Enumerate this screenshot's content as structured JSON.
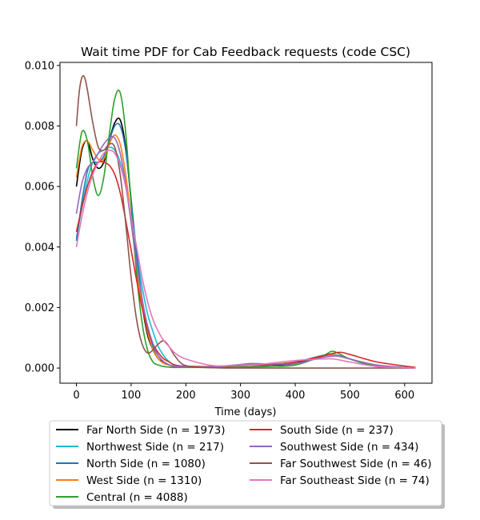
{
  "chart_data": {
    "type": "line",
    "title": "Wait time PDF for Cab Feedback  requests (code CSC)",
    "xlabel": "Time (days)",
    "ylabel": "",
    "xlim": [
      -30,
      650
    ],
    "ylim": [
      -0.0005,
      0.0101
    ],
    "xticks": [
      0,
      100,
      200,
      300,
      400,
      500,
      600
    ],
    "xtick_labels": [
      "0",
      "100",
      "200",
      "300",
      "400",
      "500",
      "600"
    ],
    "yticks": [
      0.0,
      0.002,
      0.004,
      0.006,
      0.008,
      0.01
    ],
    "ytick_labels": [
      "0.000",
      "0.002",
      "0.004",
      "0.006",
      "0.008",
      "0.010"
    ],
    "grid": false,
    "legend_placement": "below plot, two columns",
    "series": [
      {
        "name": "Far North Side (n = 1973)",
        "color": "#000000",
        "x": [
          0,
          10,
          20,
          30,
          40,
          50,
          60,
          70,
          80,
          90,
          100,
          110,
          120,
          130,
          140,
          150,
          160,
          170,
          180,
          200,
          250,
          300,
          350,
          400,
          450,
          470,
          500,
          550,
          620
        ],
        "y": [
          0.006,
          0.0072,
          0.0075,
          0.0069,
          0.0066,
          0.0068,
          0.0075,
          0.0081,
          0.0082,
          0.0073,
          0.0055,
          0.0036,
          0.0021,
          0.0011,
          0.0006,
          0.0003,
          0.0002,
          0.0001,
          5e-05,
          3e-05,
          3e-05,
          0.0001,
          0.0001,
          0.00015,
          0.0004,
          0.00045,
          0.0003,
          5e-05,
          0.0
        ]
      },
      {
        "name": "Northwest Side (n = 217)",
        "color": "#17becf",
        "x": [
          0,
          10,
          20,
          30,
          40,
          50,
          60,
          70,
          80,
          90,
          100,
          110,
          120,
          130,
          140,
          150,
          160,
          170,
          180,
          200,
          250,
          300,
          350,
          400,
          450,
          470,
          500,
          550,
          620
        ],
        "y": [
          0.0043,
          0.0053,
          0.0062,
          0.0068,
          0.0071,
          0.0072,
          0.0073,
          0.0072,
          0.0068,
          0.006,
          0.0049,
          0.0038,
          0.0027,
          0.0018,
          0.0012,
          0.0007,
          0.0004,
          0.0002,
          0.0001,
          5e-05,
          5e-05,
          0.0001,
          0.0001,
          0.0002,
          0.00042,
          0.00045,
          0.0003,
          8e-05,
          0.0
        ]
      },
      {
        "name": "North Side (n = 1080)",
        "color": "#1f77b4",
        "x": [
          0,
          10,
          20,
          30,
          40,
          50,
          60,
          70,
          80,
          90,
          100,
          110,
          120,
          130,
          140,
          150,
          160,
          170,
          180,
          200,
          250,
          300,
          350,
          400,
          450,
          470,
          500,
          550,
          620
        ],
        "y": [
          0.0042,
          0.0055,
          0.0065,
          0.0068,
          0.0068,
          0.007,
          0.0075,
          0.008,
          0.008,
          0.0072,
          0.0056,
          0.0038,
          0.0023,
          0.0013,
          0.0007,
          0.0004,
          0.0002,
          0.0001,
          5e-05,
          3e-05,
          3e-05,
          0.0001,
          0.00012,
          0.0002,
          0.0004,
          0.00042,
          0.0003,
          6e-05,
          0.0
        ]
      },
      {
        "name": "West Side (n = 1310)",
        "color": "#ff7f0e",
        "x": [
          0,
          10,
          20,
          30,
          40,
          50,
          60,
          70,
          80,
          90,
          100,
          110,
          120,
          130,
          140,
          150,
          160,
          170,
          180,
          200,
          250,
          300,
          350,
          400,
          450,
          470,
          500,
          550,
          620
        ],
        "y": [
          0.0063,
          0.0073,
          0.0075,
          0.0072,
          0.0069,
          0.0069,
          0.0074,
          0.0077,
          0.0074,
          0.0064,
          0.0049,
          0.0033,
          0.0021,
          0.0012,
          0.0006,
          0.0003,
          0.00015,
          0.0001,
          5e-05,
          3e-05,
          3e-05,
          0.0001,
          0.00012,
          0.0002,
          0.0004,
          0.00043,
          0.0003,
          6e-05,
          0.0
        ]
      },
      {
        "name": "Central (n = 4088)",
        "color": "#2ca02c",
        "x": [
          0,
          10,
          20,
          30,
          40,
          50,
          60,
          70,
          80,
          90,
          100,
          110,
          120,
          130,
          140,
          150,
          160,
          170,
          180,
          200,
          250,
          300,
          350,
          400,
          450,
          470,
          500,
          550,
          620
        ],
        "y": [
          0.0066,
          0.0078,
          0.0075,
          0.0063,
          0.0057,
          0.0063,
          0.0077,
          0.0089,
          0.0091,
          0.0078,
          0.0054,
          0.0031,
          0.0015,
          0.0006,
          0.0002,
          0.0001,
          5e-05,
          3e-05,
          2e-05,
          2e-05,
          2e-05,
          3e-05,
          5e-05,
          0.0001,
          0.0004,
          0.00055,
          0.0003,
          5e-05,
          0.0
        ]
      },
      {
        "name": "South Side (n = 237)",
        "color": "#d62728",
        "x": [
          0,
          10,
          20,
          30,
          40,
          50,
          60,
          70,
          80,
          90,
          100,
          110,
          120,
          130,
          140,
          150,
          160,
          170,
          180,
          200,
          250,
          300,
          350,
          400,
          450,
          480,
          500,
          550,
          620
        ],
        "y": [
          0.0045,
          0.0053,
          0.006,
          0.0065,
          0.0068,
          0.0068,
          0.0067,
          0.0064,
          0.0058,
          0.0049,
          0.0039,
          0.0029,
          0.002,
          0.0013,
          0.0008,
          0.0005,
          0.0003,
          0.0002,
          0.0001,
          6e-05,
          5e-05,
          8e-05,
          0.0001,
          0.0002,
          0.0004,
          0.00052,
          0.00045,
          0.0002,
          2e-05
        ]
      },
      {
        "name": "Southwest Side (n = 434)",
        "color": "#9467bd",
        "x": [
          0,
          10,
          20,
          30,
          40,
          50,
          60,
          70,
          80,
          90,
          100,
          110,
          120,
          130,
          140,
          150,
          160,
          170,
          180,
          200,
          250,
          300,
          320,
          350,
          400,
          450,
          480,
          500,
          550,
          620
        ],
        "y": [
          0.0051,
          0.0061,
          0.0066,
          0.0068,
          0.0071,
          0.0074,
          0.0076,
          0.0076,
          0.0071,
          0.0061,
          0.0048,
          0.0035,
          0.0023,
          0.0014,
          0.0008,
          0.0004,
          0.0002,
          0.0001,
          6e-05,
          4e-05,
          4e-05,
          0.00012,
          0.00015,
          0.00014,
          0.00015,
          0.00035,
          0.0004,
          0.0003,
          0.0001,
          0.0
        ]
      },
      {
        "name": "Far Southwest Side (n = 46)",
        "color": "#8c564b",
        "x": [
          0,
          5,
          10,
          15,
          20,
          30,
          40,
          50,
          60,
          70,
          80,
          90,
          100,
          110,
          120,
          130,
          140,
          150,
          160,
          170,
          180,
          200,
          250,
          300,
          400,
          450,
          500,
          550,
          620
        ],
        "y": [
          0.008,
          0.0091,
          0.0096,
          0.0096,
          0.0092,
          0.0081,
          0.0073,
          0.0072,
          0.0074,
          0.0073,
          0.0064,
          0.0048,
          0.003,
          0.0016,
          0.0008,
          0.0005,
          0.0006,
          0.0008,
          0.0009,
          0.0007,
          0.0004,
          8e-05,
          1e-05,
          0.0,
          0.0,
          0.0,
          0.0,
          0.0,
          0.0
        ]
      },
      {
        "name": "Far Southeast Side (n = 74)",
        "color": "#e377c2",
        "x": [
          0,
          10,
          20,
          30,
          40,
          50,
          60,
          70,
          80,
          90,
          100,
          110,
          120,
          130,
          140,
          150,
          160,
          170,
          180,
          200,
          250,
          300,
          320,
          350,
          400,
          450,
          470,
          500,
          550,
          620
        ],
        "y": [
          0.004,
          0.005,
          0.0058,
          0.0064,
          0.0068,
          0.0071,
          0.0072,
          0.0071,
          0.0067,
          0.006,
          0.005,
          0.004,
          0.003,
          0.0022,
          0.0016,
          0.0012,
          0.0009,
          0.0007,
          0.0005,
          0.0003,
          8e-05,
          0.0001,
          0.0001,
          0.00015,
          0.00025,
          0.0003,
          0.0003,
          0.0002,
          5e-05,
          0.0
        ]
      }
    ]
  }
}
